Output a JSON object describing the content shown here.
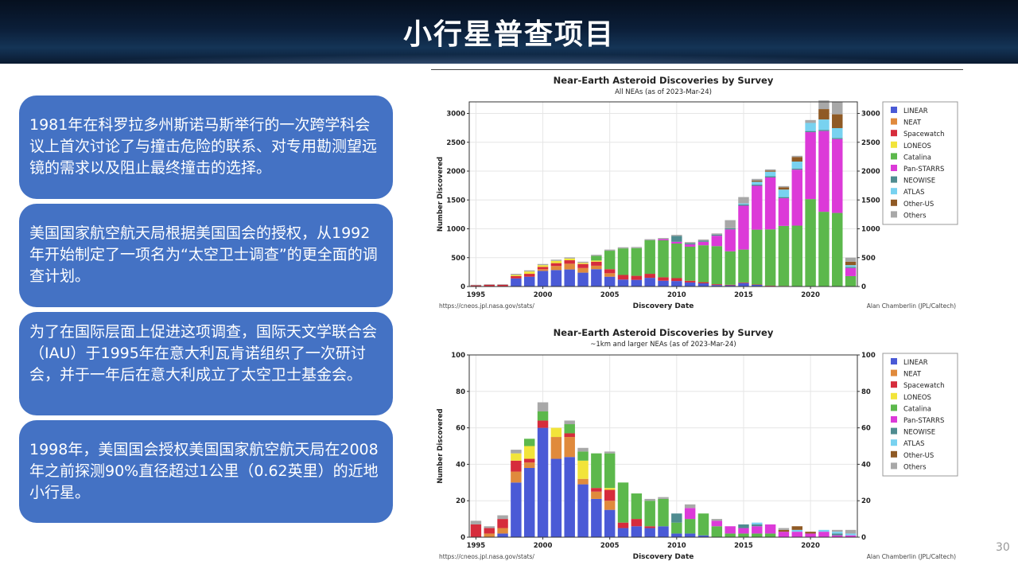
{
  "header": {
    "title": "小行星普查项目"
  },
  "cards": [
    {
      "text": "1981年在科罗拉多州斯诺马斯举行的一次跨学科会议上首次讨论了与撞击危险的联系、对专用勘测望远镜的需求以及阻止最终撞击的选择。"
    },
    {
      "text": "美国国家航空航天局根据美国国会的授权，从1992年开始制定了一项名为“太空卫士调查”的更全面的调查计划。"
    },
    {
      "text": "为了在国际层面上促进这项调查，国际天文学联合会（IAU）于1995年在意大利瓦肯诺组织了一次研讨会，并于一年后在意大利成立了太空卫士基金会。"
    },
    {
      "text": "1998年，美国国会授权美国国家航空航天局在2008年之前探测90%直径超过1公里（0.62英里）的近地小行星。"
    }
  ],
  "page_number": "30",
  "colors": {
    "banner": "#0b1e38",
    "card": "#4472c4",
    "LINEAR": "#4a5ad6",
    "NEAT": "#e08a3c",
    "Spacewatch": "#d62c3c",
    "LONEOS": "#f2e43a",
    "Catalina": "#5cb84c",
    "Pan-STARRS": "#dc3ad8",
    "NEOWISE": "#4f8c90",
    "ATLAS": "#78d2f0",
    "Other-US": "#8f5a25",
    "Others": "#a8a8a8"
  },
  "chart_data": [
    {
      "type": "bar",
      "stacked": true,
      "title": "Near-Earth Asteroid Discoveries by Survey",
      "subtitle": "All NEAs (as of 2023-Mar-24)",
      "xlabel": "Discovery Date",
      "ylabel": "Number Discovered",
      "ylim": [
        0,
        3200
      ],
      "yticks": [
        "0",
        "500",
        "1000",
        "1500",
        "2000",
        "2500",
        "3000"
      ],
      "xticks": [
        "1995",
        "2000",
        "2005",
        "2010",
        "2015",
        "2020"
      ],
      "source_left": "https://cneos.jpl.nasa.gov/stats/",
      "source_right": "Alan Chamberlin (JPL/Caltech)",
      "legend_position": "right",
      "categories": [
        1995,
        1996,
        1997,
        1998,
        1999,
        2000,
        2001,
        2002,
        2003,
        2004,
        2005,
        2006,
        2007,
        2008,
        2009,
        2010,
        2011,
        2012,
        2013,
        2014,
        2015,
        2016,
        2017,
        2018,
        2019,
        2020,
        2021,
        2022,
        2023
      ],
      "series": [
        {
          "name": "LINEAR",
          "values": [
            0,
            0,
            0,
            140,
            170,
            270,
            285,
            295,
            240,
            300,
            170,
            120,
            115,
            150,
            100,
            95,
            70,
            55,
            25,
            20,
            60,
            30,
            10,
            5,
            0,
            0,
            0,
            0,
            0
          ]
        },
        {
          "name": "NEAT",
          "values": [
            0,
            0,
            0,
            0,
            0,
            30,
            70,
            100,
            80,
            60,
            60,
            0,
            0,
            0,
            0,
            0,
            0,
            0,
            0,
            0,
            0,
            0,
            0,
            0,
            0,
            0,
            0,
            0,
            0
          ]
        },
        {
          "name": "Spacewatch",
          "values": [
            20,
            30,
            30,
            40,
            50,
            40,
            50,
            60,
            70,
            70,
            70,
            80,
            70,
            70,
            60,
            50,
            30,
            20,
            15,
            10,
            10,
            5,
            5,
            5,
            5,
            5,
            5,
            5,
            0
          ]
        },
        {
          "name": "LONEOS",
          "values": [
            0,
            0,
            0,
            20,
            40,
            30,
            40,
            30,
            20,
            20,
            0,
            0,
            0,
            0,
            0,
            0,
            0,
            0,
            0,
            0,
            0,
            0,
            0,
            0,
            0,
            0,
            0,
            0,
            0
          ]
        },
        {
          "name": "Catalina",
          "values": [
            0,
            0,
            0,
            0,
            0,
            0,
            0,
            0,
            0,
            80,
            320,
            460,
            480,
            580,
            640,
            600,
            590,
            640,
            660,
            580,
            570,
            950,
            975,
            1040,
            1050,
            1510,
            1290,
            1270,
            180
          ]
        },
        {
          "name": "Pan-STARRS",
          "values": [
            0,
            0,
            0,
            0,
            0,
            0,
            0,
            0,
            0,
            0,
            0,
            0,
            0,
            0,
            20,
            30,
            40,
            60,
            180,
            380,
            760,
            760,
            900,
            480,
            970,
            1160,
            1400,
            1280,
            140
          ]
        },
        {
          "name": "NEOWISE",
          "values": [
            0,
            0,
            0,
            0,
            0,
            0,
            0,
            0,
            0,
            0,
            0,
            0,
            0,
            0,
            0,
            100,
            20,
            20,
            20,
            20,
            20,
            20,
            20,
            20,
            20,
            20,
            20,
            20,
            20
          ]
        },
        {
          "name": "ATLAS",
          "values": [
            0,
            0,
            0,
            0,
            0,
            0,
            0,
            0,
            0,
            0,
            0,
            0,
            0,
            0,
            0,
            0,
            0,
            0,
            0,
            0,
            20,
            50,
            80,
            130,
            120,
            140,
            180,
            170,
            30
          ]
        },
        {
          "name": "Other-US",
          "values": [
            0,
            0,
            0,
            0,
            0,
            0,
            0,
            0,
            0,
            0,
            0,
            0,
            0,
            0,
            0,
            0,
            0,
            0,
            0,
            0,
            0,
            20,
            20,
            40,
            80,
            0,
            180,
            240,
            60
          ]
        },
        {
          "name": "Others",
          "values": [
            10,
            10,
            10,
            20,
            20,
            20,
            20,
            20,
            20,
            20,
            20,
            20,
            20,
            20,
            20,
            20,
            20,
            20,
            20,
            140,
            110,
            30,
            20,
            20,
            20,
            50,
            150,
            220,
            70
          ]
        }
      ]
    },
    {
      "type": "bar",
      "stacked": true,
      "title": "Near-Earth Asteroid Discoveries by Survey",
      "subtitle": "~1km and larger NEAs (as of 2023-Mar-24)",
      "xlabel": "Discovery Date",
      "ylabel": "Number Discovered",
      "ylim": [
        0,
        100
      ],
      "yticks": [
        "0",
        "20",
        "40",
        "60",
        "80",
        "100"
      ],
      "xticks": [
        "1995",
        "2000",
        "2005",
        "2010",
        "2015",
        "2020"
      ],
      "source_left": "https://cneos.jpl.nasa.gov/stats/",
      "source_right": "Alan Chamberlin (JPL/Caltech)",
      "legend_position": "right",
      "categories": [
        1995,
        1996,
        1997,
        1998,
        1999,
        2000,
        2001,
        2002,
        2003,
        2004,
        2005,
        2006,
        2007,
        2008,
        2009,
        2010,
        2011,
        2012,
        2013,
        2014,
        2015,
        2016,
        2017,
        2018,
        2019,
        2020,
        2021,
        2022,
        2023
      ],
      "series": [
        {
          "name": "LINEAR",
          "values": [
            0,
            0,
            2,
            30,
            38,
            60,
            43,
            44,
            29,
            21,
            15,
            5,
            6,
            5,
            6,
            2,
            2,
            1,
            0,
            0,
            0,
            0,
            0,
            0,
            0,
            0,
            0,
            0,
            0
          ]
        },
        {
          "name": "NEAT",
          "values": [
            0,
            2,
            3,
            6,
            3,
            0,
            12,
            11,
            3,
            4,
            5,
            0,
            0,
            0,
            0,
            0,
            0,
            0,
            0,
            0,
            0,
            0,
            0,
            0,
            0,
            0,
            0,
            0,
            0
          ]
        },
        {
          "name": "Spacewatch",
          "values": [
            7,
            3,
            5,
            6,
            2,
            4,
            0,
            2,
            0,
            2,
            6,
            3,
            4,
            1,
            0,
            0,
            0,
            0,
            0,
            0,
            0,
            0,
            0,
            0,
            0,
            0,
            0,
            0,
            0
          ]
        },
        {
          "name": "LONEOS",
          "values": [
            0,
            0,
            0,
            4,
            7,
            0,
            5,
            0,
            10,
            0,
            1,
            0,
            0,
            0,
            0,
            0,
            0,
            0,
            0,
            0,
            0,
            0,
            0,
            0,
            0,
            0,
            0,
            0,
            0
          ]
        },
        {
          "name": "Catalina",
          "values": [
            0,
            0,
            0,
            0,
            4,
            5,
            0,
            5,
            5,
            19,
            19,
            22,
            14,
            14,
            15,
            6,
            8,
            12,
            6,
            2,
            2,
            2,
            2,
            0,
            0,
            0,
            0,
            0,
            0
          ]
        },
        {
          "name": "Pan-STARRS",
          "values": [
            0,
            0,
            0,
            0,
            0,
            0,
            0,
            0,
            0,
            0,
            0,
            0,
            0,
            0,
            0,
            0,
            6,
            0,
            3,
            4,
            3,
            4,
            5,
            3,
            3,
            2,
            3,
            1,
            1
          ]
        },
        {
          "name": "NEOWISE",
          "values": [
            0,
            0,
            0,
            0,
            0,
            0,
            0,
            0,
            0,
            0,
            0,
            0,
            0,
            0,
            0,
            5,
            0,
            0,
            0,
            0,
            2,
            1,
            0,
            0,
            0,
            0,
            0,
            1,
            0
          ]
        },
        {
          "name": "ATLAS",
          "values": [
            0,
            0,
            0,
            0,
            0,
            0,
            0,
            0,
            0,
            0,
            0,
            0,
            0,
            0,
            0,
            0,
            0,
            0,
            0,
            0,
            0,
            1,
            0,
            0,
            1,
            0,
            1,
            1,
            1
          ]
        },
        {
          "name": "Other-US",
          "values": [
            0,
            0,
            0,
            0,
            0,
            0,
            0,
            0,
            0,
            0,
            0,
            0,
            0,
            0,
            0,
            0,
            0,
            0,
            0,
            0,
            0,
            0,
            0,
            1,
            2,
            1,
            0,
            0,
            0
          ]
        },
        {
          "name": "Others",
          "values": [
            2,
            1,
            2,
            2,
            0,
            5,
            0,
            2,
            2,
            0,
            1,
            0,
            0,
            1,
            1,
            0,
            2,
            0,
            1,
            0,
            0,
            0,
            0,
            1,
            0,
            0,
            0,
            1,
            2
          ]
        }
      ]
    }
  ]
}
